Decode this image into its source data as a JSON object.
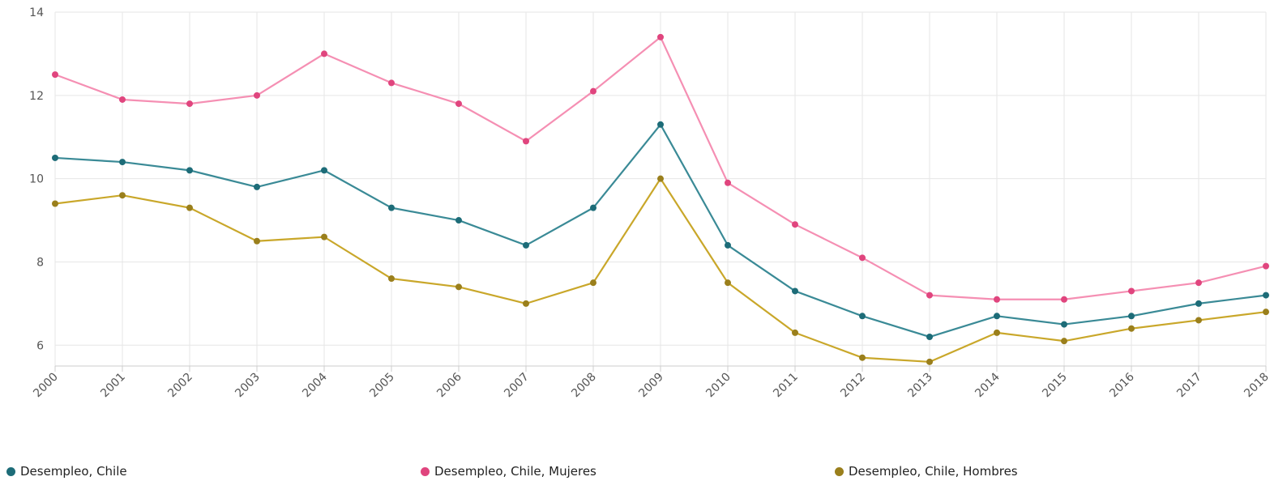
{
  "chart_data": {
    "type": "line",
    "categories": [
      "2000",
      "2001",
      "2002",
      "2003",
      "2004",
      "2005",
      "2006",
      "2007",
      "2008",
      "2009",
      "2010",
      "2011",
      "2012",
      "2013",
      "2014",
      "2015",
      "2016",
      "2017",
      "2018"
    ],
    "ylim": [
      5.5,
      14
    ],
    "yticks": [
      "6",
      "8",
      "10",
      "12",
      "14"
    ],
    "grid": true,
    "legend_position": "bottom",
    "series": [
      {
        "name": "Desempleo, Chile",
        "line_color": "#3a8a96",
        "marker_color": "#1d6c78",
        "values": [
          10.5,
          10.4,
          10.2,
          9.8,
          10.2,
          9.3,
          9.0,
          8.4,
          9.3,
          11.3,
          8.4,
          7.3,
          6.7,
          6.2,
          6.7,
          6.5,
          6.7,
          7.0,
          7.2
        ]
      },
      {
        "name": "Desempleo, Chile, Mujeres",
        "line_color": "#f58fb3",
        "marker_color": "#e0457e",
        "values": [
          12.5,
          11.9,
          11.8,
          12.0,
          13.0,
          12.3,
          11.8,
          10.9,
          12.1,
          13.4,
          9.9,
          8.9,
          8.1,
          7.2,
          7.1,
          7.1,
          7.3,
          7.5,
          7.9
        ]
      },
      {
        "name": "Desempleo, Chile, Hombres",
        "line_color": "#c9a72a",
        "marker_color": "#9a7f1c",
        "values": [
          9.4,
          9.6,
          9.3,
          8.5,
          8.6,
          7.6,
          7.4,
          7.0,
          7.5,
          10.0,
          7.5,
          6.3,
          5.7,
          5.6,
          6.3,
          6.1,
          6.4,
          6.6,
          6.8
        ]
      }
    ]
  }
}
